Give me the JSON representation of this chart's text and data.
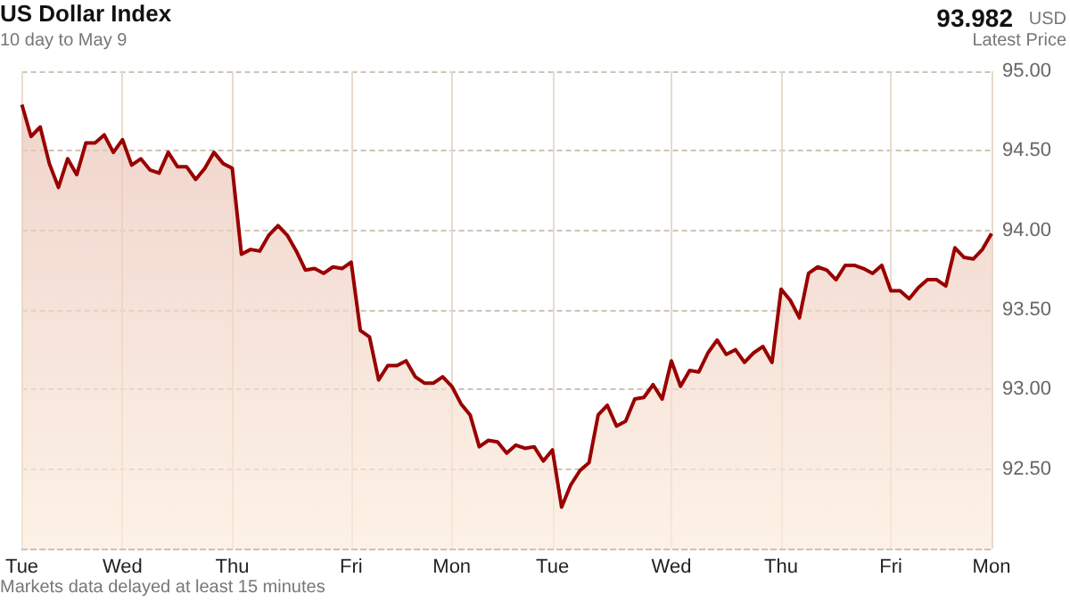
{
  "chart_data": {
    "type": "area",
    "title": "US Dollar Index",
    "subtitle": "10 day to May 9",
    "annotations": [
      "93.982",
      "USD",
      "Latest Price",
      "Markets data delayed at least 15 minutes"
    ],
    "color": "#990000",
    "categories": [
      "Tue",
      null,
      null,
      null,
      null,
      null,
      null,
      null,
      null,
      null,
      null,
      "Wed",
      null,
      null,
      null,
      null,
      null,
      null,
      null,
      null,
      null,
      null,
      null,
      "Thu",
      null,
      null,
      null,
      null,
      null,
      null,
      null,
      null,
      null,
      null,
      null,
      null,
      "Fri",
      null,
      null,
      null,
      null,
      null,
      null,
      null,
      null,
      null,
      null,
      "Mon",
      null,
      null,
      null,
      null,
      null,
      null,
      null,
      null,
      null,
      null,
      "Tue",
      null,
      null,
      null,
      null,
      null,
      null,
      null,
      null,
      null,
      null,
      null,
      null,
      "Wed",
      null,
      null,
      null,
      null,
      null,
      null,
      null,
      null,
      null,
      null,
      null,
      "Thu",
      null,
      null,
      null,
      null,
      null,
      null,
      null,
      null,
      null,
      null,
      null,
      "Fri",
      null,
      null,
      null,
      null,
      null,
      null,
      null,
      null,
      null,
      null,
      "Mon"
    ],
    "values": [
      94.79,
      94.59,
      94.65,
      94.42,
      94.27,
      94.45,
      94.35,
      94.55,
      94.55,
      94.6,
      94.49,
      94.57,
      94.41,
      94.45,
      94.38,
      94.36,
      94.49,
      94.4,
      94.4,
      94.32,
      94.39,
      94.49,
      94.42,
      94.39,
      93.85,
      93.88,
      93.87,
      93.97,
      94.03,
      93.97,
      93.87,
      93.75,
      93.76,
      93.73,
      93.77,
      93.76,
      93.8,
      93.37,
      93.33,
      93.06,
      93.15,
      93.15,
      93.18,
      93.08,
      93.04,
      93.04,
      93.08,
      93.02,
      92.91,
      92.84,
      92.64,
      92.68,
      92.67,
      92.6,
      92.65,
      92.63,
      92.64,
      92.55,
      92.62,
      92.26,
      92.4,
      92.49,
      92.54,
      92.84,
      92.9,
      92.77,
      92.8,
      92.94,
      92.95,
      93.03,
      92.94,
      93.18,
      93.02,
      93.12,
      93.11,
      93.23,
      93.31,
      93.22,
      93.25,
      93.17,
      93.23,
      93.27,
      93.17,
      93.63,
      93.56,
      93.45,
      93.73,
      93.77,
      93.75,
      93.69,
      93.78,
      93.78,
      93.76,
      93.73,
      93.78,
      93.62,
      93.62,
      93.57,
      93.64,
      93.69,
      93.69,
      93.65,
      93.89,
      93.83,
      93.82,
      93.88,
      93.98
    ],
    "ylim": [
      92,
      95
    ],
    "yticks": [
      {
        "value": 92,
        "label": null
      },
      {
        "value": 92.5,
        "label": "92.50"
      },
      {
        "value": 93,
        "label": "93.00"
      },
      {
        "value": 93.5,
        "label": "93.50"
      },
      {
        "value": 94,
        "label": "94.00"
      },
      {
        "value": 94.5,
        "label": "94.50"
      },
      {
        "value": 95,
        "label": "95.00"
      }
    ],
    "grid": true
  }
}
